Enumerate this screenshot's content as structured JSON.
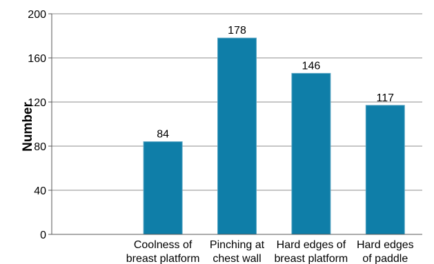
{
  "chart_data": {
    "type": "bar",
    "categories": [
      [
        "Coolness of",
        "breast platform"
      ],
      [
        "Pinching at",
        "chest wall"
      ],
      [
        "Hard edges of",
        "breast platform"
      ],
      [
        "Hard edges",
        "of paddle"
      ]
    ],
    "values": [
      84,
      178,
      146,
      117
    ],
    "data_labels": [
      "84",
      "178",
      "146",
      "117"
    ],
    "title": "",
    "xlabel": "",
    "ylabel": "Number",
    "ylim": [
      0,
      200
    ],
    "yticks": [
      "0",
      "40",
      "80",
      "120",
      "160",
      "200"
    ],
    "grid": "horizontal",
    "bar_color": "#0f7ea8",
    "bar_edge_color": "#5aa6c4"
  }
}
